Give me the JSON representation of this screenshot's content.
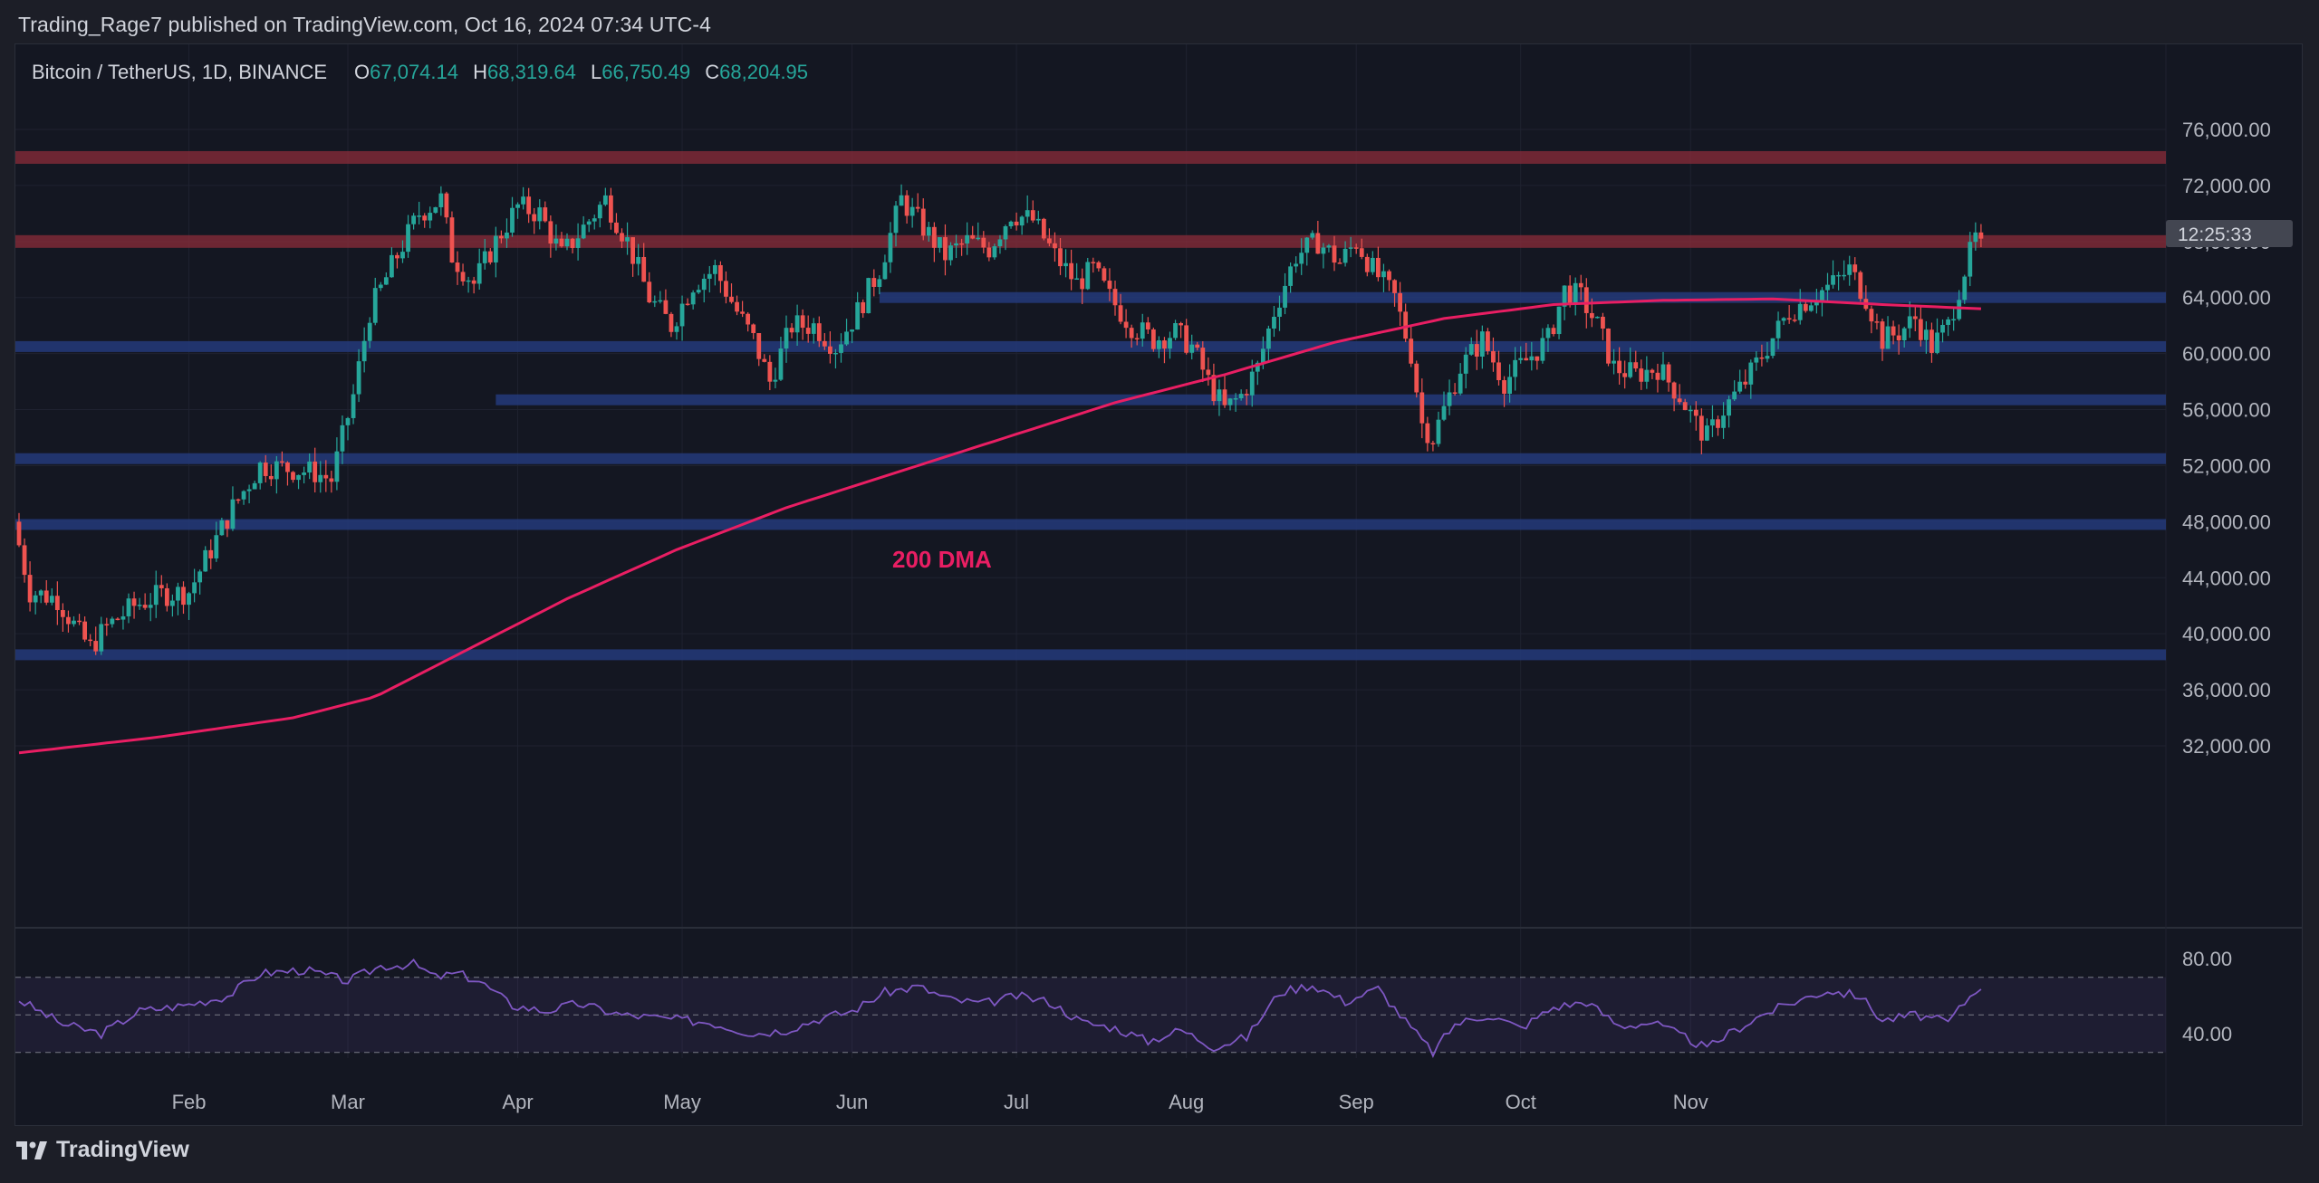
{
  "header": {
    "published_text": "Trading_Rage7 published on TradingView.com, Oct 16, 2024 07:34 UTC-4"
  },
  "footer": {
    "brand": "TradingView"
  },
  "chart_data": [
    {
      "type": "candlestick",
      "symbol_text": "Bitcoin / TetherUS, 1D, BINANCE",
      "ohlc_labels": {
        "open_key": "O",
        "open": "67,074.14",
        "high_key": "H",
        "high": "68,319.64",
        "low_key": "L",
        "low": "66,750.49",
        "close_key": "C",
        "close": "68,204.95"
      },
      "countdown_label": "12:25:33",
      "annotation": "200 DMA",
      "ylim": [
        28000,
        78000
      ],
      "y_ticks": [
        "76,000.00",
        "72,000.00",
        "68,000.00",
        "64,000.00",
        "60,000.00",
        "56,000.00",
        "52,000.00",
        "48,000.00",
        "44,000.00",
        "40,000.00",
        "36,000.00",
        "32,000.00"
      ],
      "x_months": [
        "Feb",
        "Mar",
        "Apr",
        "May",
        "Jun",
        "Jul",
        "Aug",
        "Sep",
        "Oct",
        "Nov"
      ],
      "resistance_zones": [
        74000,
        68000
      ],
      "support_levels": [
        64000,
        60500,
        56700,
        52500,
        47800,
        38500
      ],
      "price_path": [
        [
          0,
          48000
        ],
        [
          3,
          43000
        ],
        [
          8,
          42500
        ],
        [
          12,
          40000
        ],
        [
          14,
          39000
        ],
        [
          17,
          40500
        ],
        [
          22,
          42000
        ],
        [
          27,
          42800
        ],
        [
          32,
          43000
        ],
        [
          36,
          46000
        ],
        [
          40,
          49000
        ],
        [
          45,
          52000
        ],
        [
          50,
          51800
        ],
        [
          55,
          51500
        ],
        [
          58,
          51000
        ],
        [
          62,
          57000
        ],
        [
          65,
          63000
        ],
        [
          70,
          67000
        ],
        [
          74,
          70000
        ],
        [
          78,
          71000
        ],
        [
          80,
          67000
        ],
        [
          84,
          65000
        ],
        [
          88,
          68000
        ],
        [
          92,
          70500
        ],
        [
          96,
          70000
        ],
        [
          100,
          67000
        ],
        [
          104,
          69000
        ],
        [
          108,
          71000
        ],
        [
          112,
          68000
        ],
        [
          116,
          64000
        ],
        [
          120,
          62000
        ],
        [
          124,
          65000
        ],
        [
          128,
          66000
        ],
        [
          132,
          63000
        ],
        [
          135,
          61000
        ],
        [
          138,
          58000
        ],
        [
          142,
          62000
        ],
        [
          146,
          62000
        ],
        [
          150,
          60500
        ],
        [
          154,
          63000
        ],
        [
          158,
          66000
        ],
        [
          162,
          71000
        ],
        [
          166,
          69000
        ],
        [
          170,
          67000
        ],
        [
          174,
          68000
        ],
        [
          178,
          67500
        ],
        [
          182,
          70000
        ],
        [
          186,
          69500
        ],
        [
          190,
          67000
        ],
        [
          194,
          65000
        ],
        [
          197,
          66000
        ],
        [
          200,
          64000
        ],
        [
          204,
          62000
        ],
        [
          208,
          61000
        ],
        [
          212,
          61500
        ],
        [
          215,
          60500
        ],
        [
          218,
          58000
        ],
        [
          221,
          56000
        ],
        [
          224,
          57000
        ],
        [
          227,
          59000
        ],
        [
          230,
          63000
        ],
        [
          234,
          67000
        ],
        [
          238,
          68000
        ],
        [
          242,
          66500
        ],
        [
          245,
          68000
        ],
        [
          248,
          66000
        ],
        [
          252,
          64000
        ],
        [
          255,
          60000
        ],
        [
          257,
          55000
        ],
        [
          259,
          54000
        ],
        [
          261,
          56000
        ],
        [
          264,
          59000
        ],
        [
          268,
          61000
        ],
        [
          272,
          58000
        ],
        [
          276,
          59500
        ],
        [
          280,
          61000
        ],
        [
          283,
          64500
        ],
        [
          286,
          64000
        ],
        [
          289,
          62000
        ],
        [
          292,
          59000
        ],
        [
          296,
          58500
        ],
        [
          300,
          59000
        ],
        [
          304,
          57000
        ],
        [
          307,
          55000
        ],
        [
          309,
          54000
        ],
        [
          312,
          56000
        ],
        [
          316,
          58000
        ],
        [
          320,
          60500
        ],
        [
          324,
          63000
        ],
        [
          328,
          64000
        ],
        [
          332,
          65000
        ],
        [
          335,
          66000
        ],
        [
          338,
          64000
        ],
        [
          341,
          61000
        ],
        [
          344,
          61500
        ],
        [
          347,
          62500
        ],
        [
          350,
          60500
        ],
        [
          353,
          62000
        ],
        [
          356,
          66000
        ],
        [
          358,
          68200
        ]
      ],
      "dma_200": [
        [
          0,
          31500
        ],
        [
          25,
          32600
        ],
        [
          50,
          34000
        ],
        [
          65,
          35500
        ],
        [
          80,
          38500
        ],
        [
          100,
          42500
        ],
        [
          120,
          46000
        ],
        [
          140,
          49000
        ],
        [
          160,
          51500
        ],
        [
          180,
          54000
        ],
        [
          200,
          56500
        ],
        [
          220,
          58500
        ],
        [
          240,
          60800
        ],
        [
          260,
          62500
        ],
        [
          280,
          63500
        ],
        [
          300,
          63800
        ],
        [
          320,
          63900
        ],
        [
          340,
          63500
        ],
        [
          358,
          63200
        ]
      ],
      "rsi": {
        "ticks": [
          "80.00",
          "40.00"
        ],
        "ylim": [
          26,
          90
        ],
        "band": [
          70,
          30
        ],
        "mid": 50,
        "path": [
          [
            0,
            58
          ],
          [
            8,
            45
          ],
          [
            15,
            40
          ],
          [
            22,
            52
          ],
          [
            30,
            55
          ],
          [
            38,
            60
          ],
          [
            44,
            72
          ],
          [
            52,
            74
          ],
          [
            60,
            68
          ],
          [
            66,
            76
          ],
          [
            72,
            77
          ],
          [
            76,
            70
          ],
          [
            80,
            72
          ],
          [
            84,
            68
          ],
          [
            90,
            55
          ],
          [
            96,
            52
          ],
          [
            102,
            56
          ],
          [
            110,
            50
          ],
          [
            118,
            48
          ],
          [
            126,
            46
          ],
          [
            134,
            40
          ],
          [
            140,
            42
          ],
          [
            146,
            48
          ],
          [
            152,
            52
          ],
          [
            158,
            62
          ],
          [
            164,
            65
          ],
          [
            170,
            58
          ],
          [
            176,
            56
          ],
          [
            182,
            60
          ],
          [
            188,
            57
          ],
          [
            194,
            46
          ],
          [
            200,
            43
          ],
          [
            206,
            36
          ],
          [
            212,
            42
          ],
          [
            218,
            33
          ],
          [
            224,
            38
          ],
          [
            230,
            62
          ],
          [
            236,
            66
          ],
          [
            242,
            57
          ],
          [
            248,
            64
          ],
          [
            254,
            43
          ],
          [
            258,
            30
          ],
          [
            262,
            45
          ],
          [
            268,
            50
          ],
          [
            274,
            43
          ],
          [
            280,
            54
          ],
          [
            286,
            57
          ],
          [
            292,
            44
          ],
          [
            298,
            46
          ],
          [
            304,
            38
          ],
          [
            308,
            32
          ],
          [
            312,
            40
          ],
          [
            318,
            50
          ],
          [
            324,
            57
          ],
          [
            330,
            63
          ],
          [
            336,
            60
          ],
          [
            340,
            47
          ],
          [
            346,
            50
          ],
          [
            352,
            46
          ],
          [
            356,
            60
          ],
          [
            358,
            66
          ]
        ]
      }
    }
  ]
}
